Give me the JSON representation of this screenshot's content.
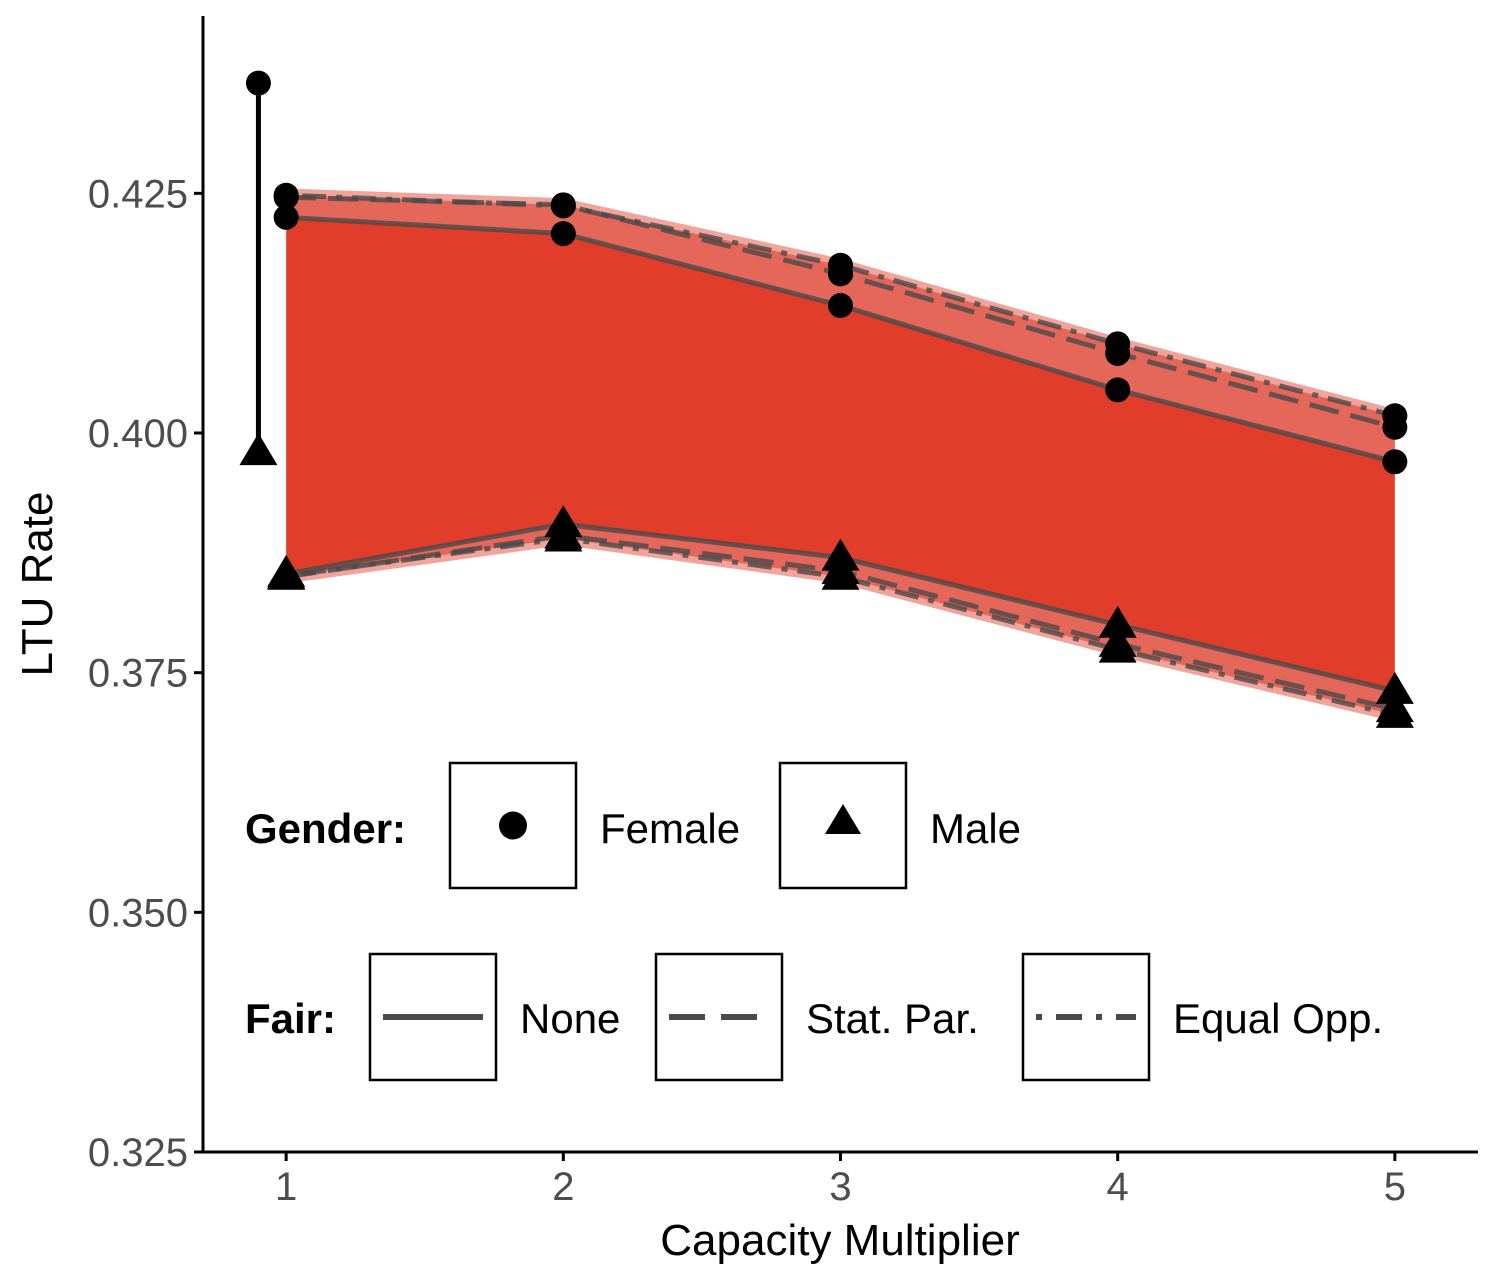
{
  "chart_data": {
    "type": "line",
    "xlabel": "Capacity Multiplier",
    "ylabel": "LTU Rate",
    "x": [
      1,
      2,
      3,
      4,
      5
    ],
    "xlim": [
      0.7,
      5.3
    ],
    "ylim": [
      0.325,
      0.4435
    ],
    "y_ticks": [
      0.325,
      0.35,
      0.375,
      0.4,
      0.425
    ],
    "y_tick_labels": [
      "0.325",
      "0.350",
      "0.375",
      "0.400",
      "0.425"
    ],
    "x_tick_labels": [
      "1",
      "2",
      "3",
      "4",
      "5"
    ],
    "colors": {
      "band_inner": "#e03e2b",
      "band_outer": "#e5675a",
      "band_edge": "#f2a49a",
      "line": "#4a4a4a",
      "axis": "#000000"
    },
    "series": [
      {
        "name": "Female",
        "fair": "None",
        "values": [
          0.4225,
          0.4208,
          0.4133,
          0.4045,
          0.397
        ]
      },
      {
        "name": "Female",
        "fair": "Stat. Par.",
        "values": [
          0.4246,
          0.4238,
          0.4166,
          0.4083,
          0.4006
        ]
      },
      {
        "name": "Female",
        "fair": "Equal Opp.",
        "values": [
          0.4248,
          0.4237,
          0.4175,
          0.4093,
          0.4018
        ]
      },
      {
        "name": "Male",
        "fair": "None",
        "values": [
          0.3853,
          0.3905,
          0.387,
          0.38,
          0.3731
        ]
      },
      {
        "name": "Male",
        "fair": "Stat. Par.",
        "values": [
          0.385,
          0.3893,
          0.3856,
          0.378,
          0.3712
        ]
      },
      {
        "name": "Male",
        "fair": "Equal Opp.",
        "values": [
          0.3851,
          0.389,
          0.385,
          0.3774,
          0.3706
        ]
      }
    ],
    "reference": {
      "x": 0.9,
      "female": 0.4365,
      "male": 0.398
    },
    "legend": {
      "gender_title": "Gender:",
      "gender_items": [
        "Female",
        "Male"
      ],
      "fair_title": "Fair:",
      "fair_items": [
        "None",
        "Stat. Par.",
        "Equal Opp."
      ]
    }
  }
}
